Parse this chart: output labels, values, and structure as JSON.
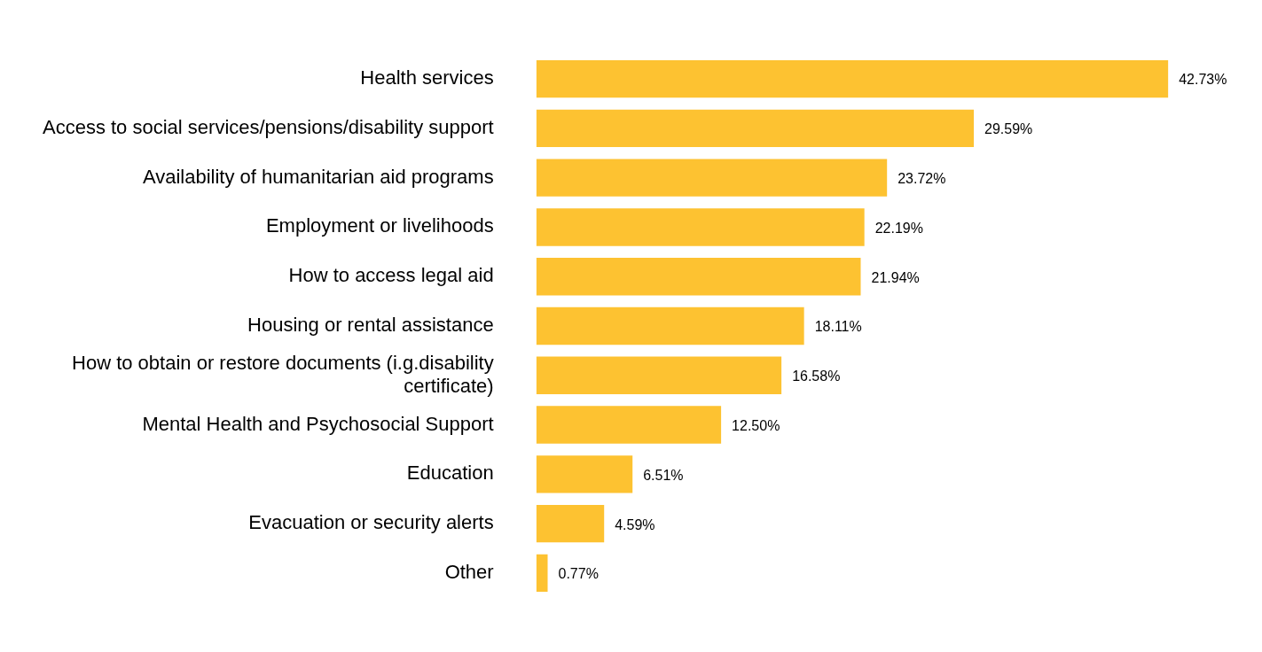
{
  "chart_data": {
    "type": "bar",
    "orientation": "horizontal",
    "categories": [
      "Health services",
      "Access to social services/pensions/disability support",
      "Availability of humanitarian aid programs",
      "Employment or livelihoods",
      "How to access legal aid",
      "Housing or rental assistance",
      "How to obtain or restore documents (i.g.disability certificate)",
      "Mental Health and Psychosocial Support",
      "Education",
      "Evacuation or security alerts",
      "Other"
    ],
    "values": [
      42.73,
      29.59,
      23.72,
      22.19,
      21.94,
      18.11,
      16.58,
      12.5,
      6.51,
      4.59,
      0.77
    ],
    "value_labels": [
      "42.73%",
      "29.59%",
      "23.72%",
      "22.19%",
      "21.94%",
      "18.11%",
      "16.58%",
      "12.50%",
      "6.51%",
      "4.59%",
      "0.77%"
    ],
    "color": "#fdc231",
    "legend": false
  }
}
